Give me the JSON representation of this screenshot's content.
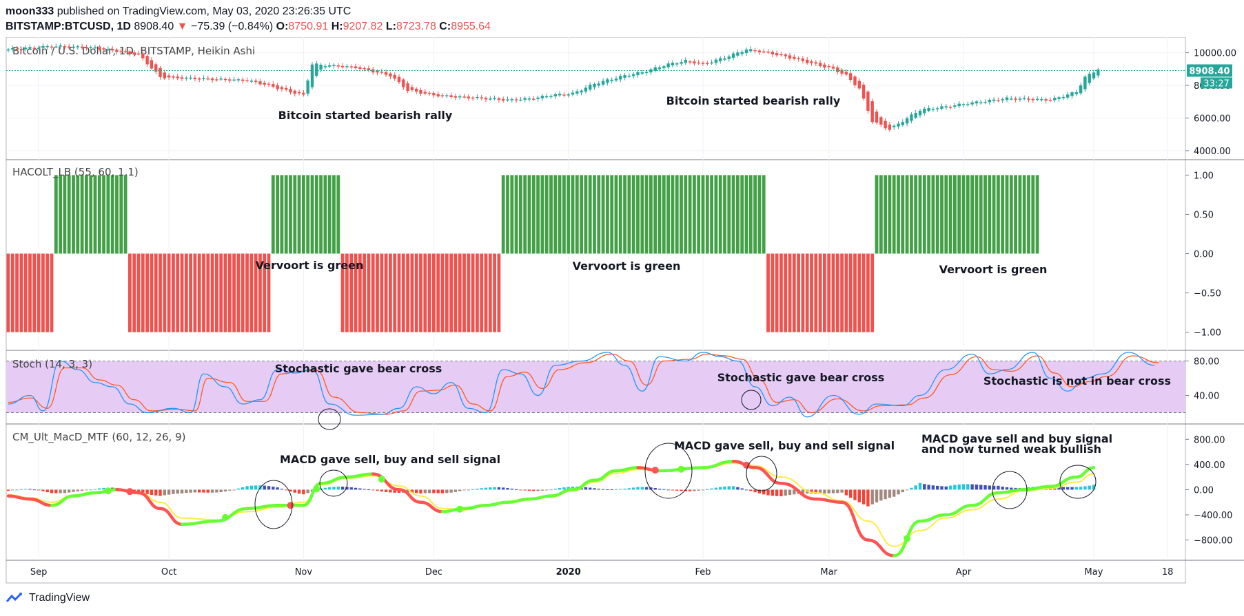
{
  "header": {
    "author": "moon333",
    "published": "published on TradingView.com, May 03, 2020 23:26:35 UTC",
    "symbol": "BITSTAMP:BTCUSD, 1D",
    "last": "8908.40",
    "change": "−75.39 (−0.84%)",
    "o_label": "O:",
    "o": "8750.91",
    "h_label": "H:",
    "h": "9207.82",
    "l_label": "L:",
    "l": "8723.78",
    "c_label": "C:",
    "c": "8955.64"
  },
  "footer": {
    "brand": "TradingView"
  },
  "colors": {
    "up": "#26a69a",
    "down": "#ef5350",
    "hacolt_up": "#43a047",
    "hacolt_down": "#ef5350",
    "stoch_k": "#2196f3",
    "stoch_d": "#ff5722",
    "stoch_band": "#e1bee7",
    "macd_up": "#66ff33",
    "macd_down": "#ff5252",
    "signal": "#ffeb3b",
    "hist_strong_up": "#26c6da",
    "hist_weak_up": "#3f51b5",
    "hist_strong_down": "#f44336",
    "hist_weak_down": "#a1887f"
  },
  "chart_data": [
    {
      "type": "candlestick",
      "title": "Bitcoin / U.S. Dollar, 1D, BITSTAMP, Heikin Ashi",
      "ylim": [
        3700,
        10700
      ],
      "yticks": [
        "10000.00",
        "8000.00",
        "6000.00",
        "4000.00"
      ],
      "last_price": "8908.40",
      "countdown": "33:27",
      "x": [
        "Sep",
        "Oct",
        "Nov",
        "Dec",
        "2020",
        "Feb",
        "Mar",
        "Apr",
        "May",
        "18"
      ],
      "close_path": [
        [
          0,
          10200
        ],
        [
          10,
          10400
        ],
        [
          20,
          10300
        ],
        [
          30,
          9900
        ],
        [
          35,
          8500
        ],
        [
          45,
          8400
        ],
        [
          55,
          8300
        ],
        [
          60,
          8000
        ],
        [
          65,
          7600
        ],
        [
          68,
          7400
        ],
        [
          70,
          9300
        ],
        [
          75,
          9200
        ],
        [
          80,
          9100
        ],
        [
          88,
          8600
        ],
        [
          92,
          7700
        ],
        [
          98,
          7400
        ],
        [
          103,
          7300
        ],
        [
          110,
          7200
        ],
        [
          115,
          7100
        ],
        [
          121,
          7200
        ],
        [
          125,
          7400
        ],
        [
          130,
          7500
        ],
        [
          135,
          8100
        ],
        [
          142,
          8600
        ],
        [
          146,
          8800
        ],
        [
          152,
          9300
        ],
        [
          156,
          9500
        ],
        [
          160,
          9300
        ],
        [
          165,
          9700
        ],
        [
          170,
          10200
        ],
        [
          175,
          10000
        ],
        [
          180,
          9700
        ],
        [
          190,
          9000
        ],
        [
          193,
          8600
        ],
        [
          196,
          7800
        ],
        [
          199,
          5800
        ],
        [
          203,
          5300
        ],
        [
          210,
          6500
        ],
        [
          216,
          6700
        ],
        [
          221,
          6900
        ],
        [
          230,
          7200
        ],
        [
          240,
          7100
        ],
        [
          246,
          7600
        ],
        [
          248,
          8500
        ],
        [
          251,
          9000
        ]
      ],
      "annotations": [
        "Bitcoin started bearish rally",
        "Bitcoin started bearish rally"
      ]
    },
    {
      "type": "bar",
      "title": "HACOLT_LB (55, 60, 1.1)",
      "ylim": [
        -1.1,
        1.1
      ],
      "yticks": [
        "1.00",
        "0.50",
        "0.00",
        "−0.50",
        "−1.00"
      ],
      "segments": [
        {
          "start": 0,
          "end": 10,
          "value": -1
        },
        {
          "start": 11,
          "end": 27,
          "value": 1
        },
        {
          "start": 28,
          "end": 60,
          "value": -1
        },
        {
          "start": 61,
          "end": 76,
          "value": 1
        },
        {
          "start": 77,
          "end": 113,
          "value": -1
        },
        {
          "start": 114,
          "end": 174,
          "value": 1
        },
        {
          "start": 175,
          "end": 199,
          "value": -1
        },
        {
          "start": 200,
          "end": 237,
          "value": 1
        }
      ],
      "annotations": [
        "Vervoort is green",
        "Vervoort is green",
        "Vervoort is green"
      ]
    },
    {
      "type": "line",
      "title": "Stoch (14, 3, 3)",
      "ylim": [
        10,
        90
      ],
      "yticks": [
        "80.00",
        "40.00"
      ],
      "band": [
        20,
        80
      ],
      "series": [
        {
          "name": "K",
          "path": [
            [
              0,
              30
            ],
            [
              5,
              40
            ],
            [
              8,
              22
            ],
            [
              12,
              80
            ],
            [
              16,
              70
            ],
            [
              20,
              55
            ],
            [
              24,
              50
            ],
            [
              28,
              30
            ],
            [
              32,
              20
            ],
            [
              38,
              25
            ],
            [
              42,
              20
            ],
            [
              45,
              65
            ],
            [
              50,
              50
            ],
            [
              54,
              30
            ],
            [
              58,
              35
            ],
            [
              62,
              70
            ],
            [
              66,
              66
            ],
            [
              70,
              70
            ],
            [
              74,
              30
            ],
            [
              80,
              17
            ],
            [
              86,
              18
            ],
            [
              90,
              25
            ],
            [
              94,
              50
            ],
            [
              98,
              42
            ],
            [
              102,
              55
            ],
            [
              106,
              25
            ],
            [
              110,
              20
            ],
            [
              114,
              70
            ],
            [
              118,
              65
            ],
            [
              122,
              40
            ],
            [
              126,
              75
            ],
            [
              132,
              80
            ],
            [
              138,
              90
            ],
            [
              142,
              75
            ],
            [
              146,
              45
            ],
            [
              150,
              85
            ],
            [
              156,
              80
            ],
            [
              160,
              90
            ],
            [
              164,
              85
            ],
            [
              168,
              80
            ],
            [
              172,
              50
            ],
            [
              176,
              28
            ],
            [
              180,
              38
            ],
            [
              184,
              15
            ],
            [
              190,
              40
            ],
            [
              196,
              18
            ],
            [
              200,
              30
            ],
            [
              206,
              28
            ],
            [
              210,
              40
            ],
            [
              216,
              70
            ],
            [
              222,
              88
            ],
            [
              226,
              65
            ],
            [
              230,
              70
            ],
            [
              236,
              90
            ],
            [
              240,
              60
            ],
            [
              244,
              45
            ],
            [
              248,
              60
            ],
            [
              252,
              65
            ],
            [
              258,
              90
            ],
            [
              264,
              75
            ]
          ]
        },
        {
          "name": "D",
          "path": [
            [
              0,
              32
            ],
            [
              5,
              37
            ],
            [
              9,
              25
            ],
            [
              13,
              72
            ],
            [
              17,
              72
            ],
            [
              21,
              58
            ],
            [
              25,
              52
            ],
            [
              29,
              35
            ],
            [
              33,
              22
            ],
            [
              39,
              24
            ],
            [
              43,
              22
            ],
            [
              46,
              60
            ],
            [
              51,
              55
            ],
            [
              55,
              33
            ],
            [
              59,
              33
            ],
            [
              63,
              65
            ],
            [
              67,
              68
            ],
            [
              71,
              69
            ],
            [
              75,
              38
            ],
            [
              81,
              20
            ],
            [
              87,
              18
            ],
            [
              91,
              22
            ],
            [
              95,
              45
            ],
            [
              99,
              46
            ],
            [
              103,
              52
            ],
            [
              107,
              30
            ],
            [
              111,
              22
            ],
            [
              115,
              62
            ],
            [
              119,
              67
            ],
            [
              123,
              48
            ],
            [
              127,
              70
            ],
            [
              133,
              78
            ],
            [
              139,
              88
            ],
            [
              143,
              80
            ],
            [
              147,
              52
            ],
            [
              151,
              80
            ],
            [
              157,
              82
            ],
            [
              161,
              88
            ],
            [
              165,
              86
            ],
            [
              169,
              82
            ],
            [
              173,
              58
            ],
            [
              177,
              32
            ],
            [
              181,
              35
            ],
            [
              185,
              20
            ],
            [
              191,
              36
            ],
            [
              197,
              22
            ],
            [
              201,
              28
            ],
            [
              207,
              29
            ],
            [
              211,
              37
            ],
            [
              217,
              64
            ],
            [
              223,
              85
            ],
            [
              227,
              70
            ],
            [
              231,
              68
            ],
            [
              237,
              86
            ],
            [
              241,
              66
            ],
            [
              245,
              50
            ],
            [
              249,
              56
            ],
            [
              253,
              62
            ],
            [
              259,
              86
            ],
            [
              265,
              78
            ]
          ]
        }
      ],
      "annotations": [
        "Stochastic gave bear cross",
        "Stochastic gave bear cross",
        "Stochastic is not in bear cross"
      ]
    },
    {
      "type": "line",
      "title": "CM_Ult_MacD_MTF (60, 12, 26, 9)",
      "ylim": [
        -1100,
        1000
      ],
      "yticks": [
        "800.00",
        "400.00",
        "0.00",
        "−400.00",
        "−800.00"
      ],
      "series": [
        {
          "name": "MACD",
          "path": [
            [
              0,
              -100
            ],
            [
              5,
              -150
            ],
            [
              10,
              -250
            ],
            [
              15,
              -100
            ],
            [
              20,
              -50
            ],
            [
              25,
              0
            ],
            [
              30,
              -50
            ],
            [
              35,
              -300
            ],
            [
              40,
              -550
            ],
            [
              48,
              -500
            ],
            [
              55,
              -300
            ],
            [
              62,
              -250
            ],
            [
              68,
              -250
            ],
            [
              72,
              100
            ],
            [
              78,
              200
            ],
            [
              84,
              250
            ],
            [
              90,
              0
            ],
            [
              95,
              -200
            ],
            [
              100,
              -350
            ],
            [
              105,
              -300
            ],
            [
              110,
              -250
            ],
            [
              115,
              -200
            ],
            [
              120,
              -150
            ],
            [
              125,
              -100
            ],
            [
              130,
              0
            ],
            [
              135,
              150
            ],
            [
              140,
              300
            ],
            [
              145,
              350
            ],
            [
              150,
              300
            ],
            [
              160,
              350
            ],
            [
              167,
              450
            ],
            [
              172,
              350
            ],
            [
              178,
              100
            ],
            [
              186,
              -150
            ],
            [
              192,
              -200
            ],
            [
              198,
              -800
            ],
            [
              204,
              -1050
            ],
            [
              210,
              -500
            ],
            [
              216,
              -400
            ],
            [
              222,
              -250
            ],
            [
              228,
              -50
            ],
            [
              234,
              0
            ],
            [
              240,
              50
            ],
            [
              246,
              200
            ],
            [
              250,
              350
            ]
          ]
        },
        {
          "name": "Signal",
          "path": [
            [
              0,
              -80
            ],
            [
              5,
              -130
            ],
            [
              10,
              -200
            ],
            [
              15,
              -90
            ],
            [
              20,
              -40
            ],
            [
              25,
              -10
            ],
            [
              30,
              -40
            ],
            [
              35,
              -200
            ],
            [
              40,
              -450
            ],
            [
              48,
              -480
            ],
            [
              55,
              -350
            ],
            [
              62,
              -280
            ],
            [
              68,
              -200
            ],
            [
              72,
              80
            ],
            [
              78,
              180
            ],
            [
              84,
              220
            ],
            [
              90,
              60
            ],
            [
              95,
              -100
            ],
            [
              100,
              -300
            ],
            [
              105,
              -320
            ],
            [
              110,
              -260
            ],
            [
              115,
              -210
            ],
            [
              120,
              -160
            ],
            [
              125,
              -110
            ],
            [
              130,
              -20
            ],
            [
              135,
              120
            ],
            [
              140,
              260
            ],
            [
              145,
              320
            ],
            [
              150,
              310
            ],
            [
              160,
              340
            ],
            [
              167,
              420
            ],
            [
              172,
              380
            ],
            [
              178,
              200
            ],
            [
              186,
              -50
            ],
            [
              192,
              -180
            ],
            [
              198,
              -500
            ],
            [
              204,
              -900
            ],
            [
              210,
              -650
            ],
            [
              216,
              -450
            ],
            [
              222,
              -320
            ],
            [
              228,
              -150
            ],
            [
              234,
              -20
            ],
            [
              240,
              20
            ],
            [
              246,
              120
            ],
            [
              250,
              250
            ]
          ]
        }
      ],
      "annotations": [
        "MACD gave sell, buy and sell signal",
        "MACD gave sell, buy and sell signal",
        "MACD gave sell and buy signal",
        "and now turned weak bullish"
      ]
    }
  ]
}
